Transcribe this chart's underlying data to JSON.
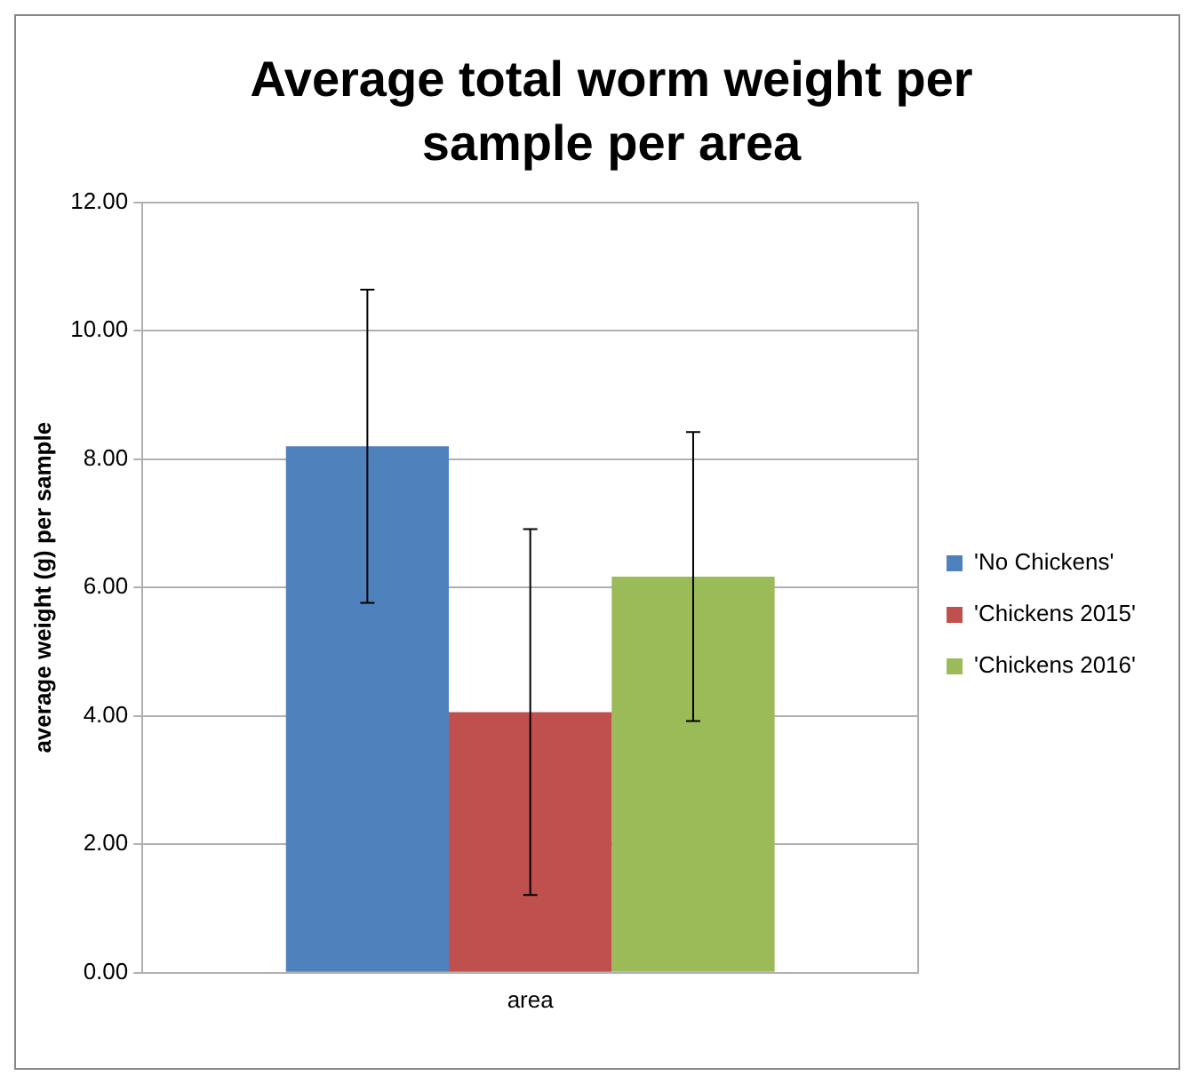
{
  "chart_data": {
    "type": "bar",
    "title": "Average total worm weight per sample per area",
    "ylabel": "average weight (g) per sample",
    "categories": [
      "area"
    ],
    "series": [
      {
        "name": "'No Chickens'",
        "color": "#4f81bd",
        "values": [
          8.2
        ],
        "errors": [
          2.44
        ]
      },
      {
        "name": "'Chickens 2015'",
        "color": "#c0504d",
        "values": [
          4.06
        ],
        "errors": [
          2.85
        ]
      },
      {
        "name": "'Chickens 2016'",
        "color": "#9bbb59",
        "values": [
          6.17
        ],
        "errors": [
          2.25
        ]
      }
    ],
    "ylim": [
      0,
      12
    ],
    "yticks": [
      {
        "value": 0,
        "label": "0.00"
      },
      {
        "value": 2,
        "label": "2.00"
      },
      {
        "value": 4,
        "label": "4.00"
      },
      {
        "value": 6,
        "label": "6.00"
      },
      {
        "value": 8,
        "label": "8.00"
      },
      {
        "value": 10,
        "label": "10.00"
      },
      {
        "value": 12,
        "label": "12.00"
      }
    ],
    "grid": "y",
    "legend": "right"
  }
}
